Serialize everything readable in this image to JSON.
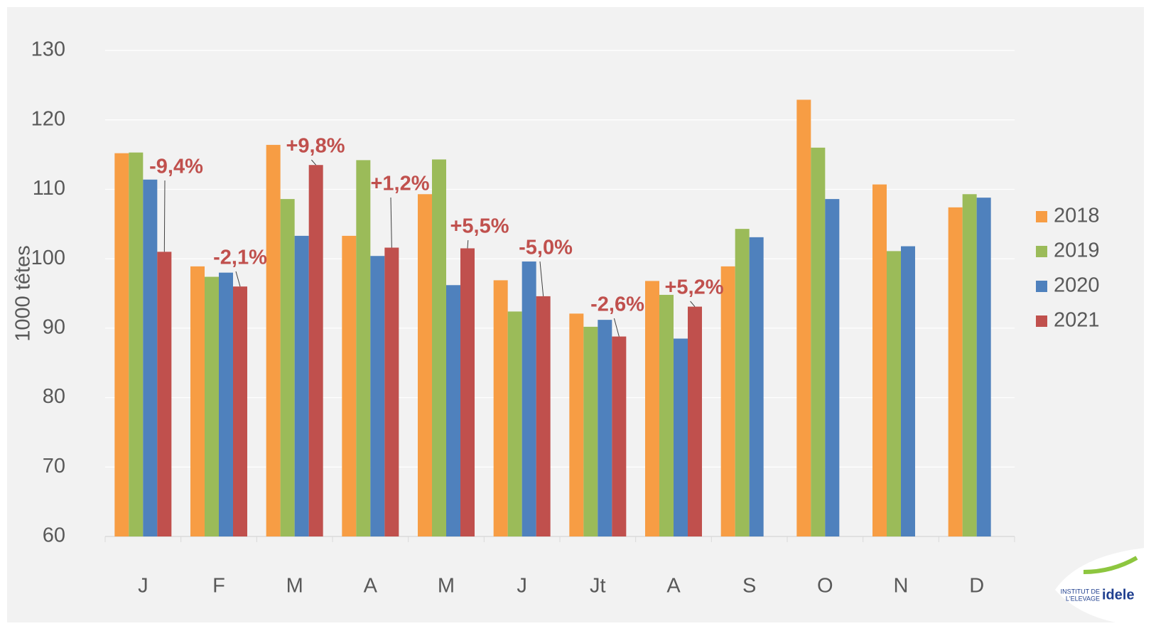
{
  "chart_data": {
    "type": "bar",
    "y_label": "1000 têtes",
    "categories": [
      "J",
      "F",
      "M",
      "A",
      "M",
      "J",
      "Jt",
      "A",
      "S",
      "O",
      "N",
      "D"
    ],
    "series": [
      {
        "name": "2018",
        "color": "#f79d44",
        "values": [
          115.2,
          98.9,
          116.4,
          103.3,
          109.3,
          96.9,
          92.1,
          96.8,
          98.9,
          122.9,
          110.7,
          107.4
        ]
      },
      {
        "name": "2019",
        "color": "#9bbb59",
        "values": [
          115.3,
          97.4,
          108.6,
          114.2,
          114.3,
          92.4,
          90.2,
          94.8,
          104.3,
          116.0,
          101.1,
          109.3
        ]
      },
      {
        "name": "2020",
        "color": "#4f81bd",
        "values": [
          111.4,
          98.0,
          103.3,
          100.4,
          96.2,
          99.6,
          91.2,
          88.5,
          103.1,
          108.6,
          101.8,
          108.8
        ]
      },
      {
        "name": "2021",
        "color": "#c0504d",
        "values": [
          101.0,
          96.0,
          113.5,
          101.6,
          101.5,
          94.6,
          88.8,
          93.1,
          null,
          null,
          null,
          null
        ]
      }
    ],
    "annotations": [
      "-9,4%",
      "-2,1%",
      "+9,8%",
      "+1,2%",
      "+5,5%",
      "-5,0%",
      "-2,6%",
      "+5,2%"
    ],
    "ylim": [
      60,
      130
    ],
    "yticks": [
      60,
      70,
      80,
      90,
      100,
      110,
      120,
      130
    ],
    "grid": true,
    "legend": "right"
  },
  "logo": {
    "line1": "INSTITUT DE",
    "line2": "L'ELEVAGE",
    "brand": "idele"
  }
}
